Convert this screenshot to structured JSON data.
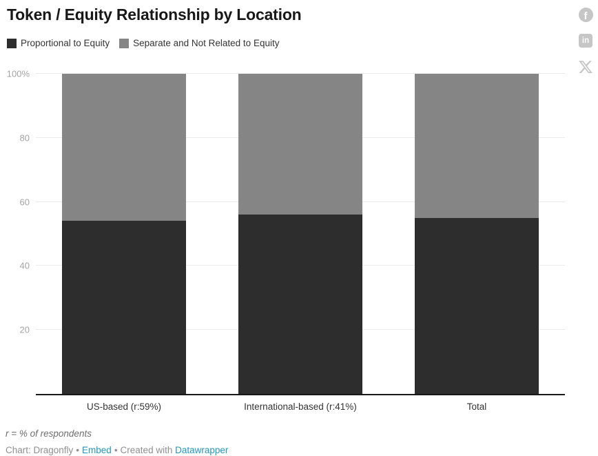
{
  "title": "Token / Equity Relationship by Location",
  "legend": [
    {
      "label": "Proportional to Equity",
      "color": "#2d2d2d"
    },
    {
      "label": "Separate and Not Related to Equity",
      "color": "#858585"
    }
  ],
  "social": {
    "icons": [
      "facebook-icon",
      "linkedin-icon",
      "x-icon"
    ],
    "facebook_glyph": "f",
    "linkedin_glyph": "in",
    "icon_color": "#c6c6c6"
  },
  "chart_data": {
    "type": "bar",
    "stacked": true,
    "categories": [
      "US-based (r:59%)",
      "International-based (r:41%)",
      "Total"
    ],
    "series": [
      {
        "name": "Proportional to Equity",
        "color": "#2d2d2d",
        "values": [
          54,
          56,
          55
        ]
      },
      {
        "name": "Separate and Not Related to Equity",
        "color": "#858585",
        "values": [
          46,
          44,
          45
        ]
      }
    ],
    "ylabel": "",
    "xlabel": "",
    "ylim": [
      0,
      100
    ],
    "yticks": [
      {
        "value": 100,
        "label": "100%"
      },
      {
        "value": 80,
        "label": "80"
      },
      {
        "value": 60,
        "label": "60"
      },
      {
        "value": 40,
        "label": "40"
      },
      {
        "value": 20,
        "label": "20"
      }
    ],
    "grid": true,
    "legend_position": "top"
  },
  "footnote": "r = % of respondents",
  "attribution": {
    "prefix": "Chart: Dragonfly",
    "separator": "•",
    "embed_label": "Embed",
    "created_with": "Created with",
    "datawrapper_label": "Datawrapper"
  }
}
